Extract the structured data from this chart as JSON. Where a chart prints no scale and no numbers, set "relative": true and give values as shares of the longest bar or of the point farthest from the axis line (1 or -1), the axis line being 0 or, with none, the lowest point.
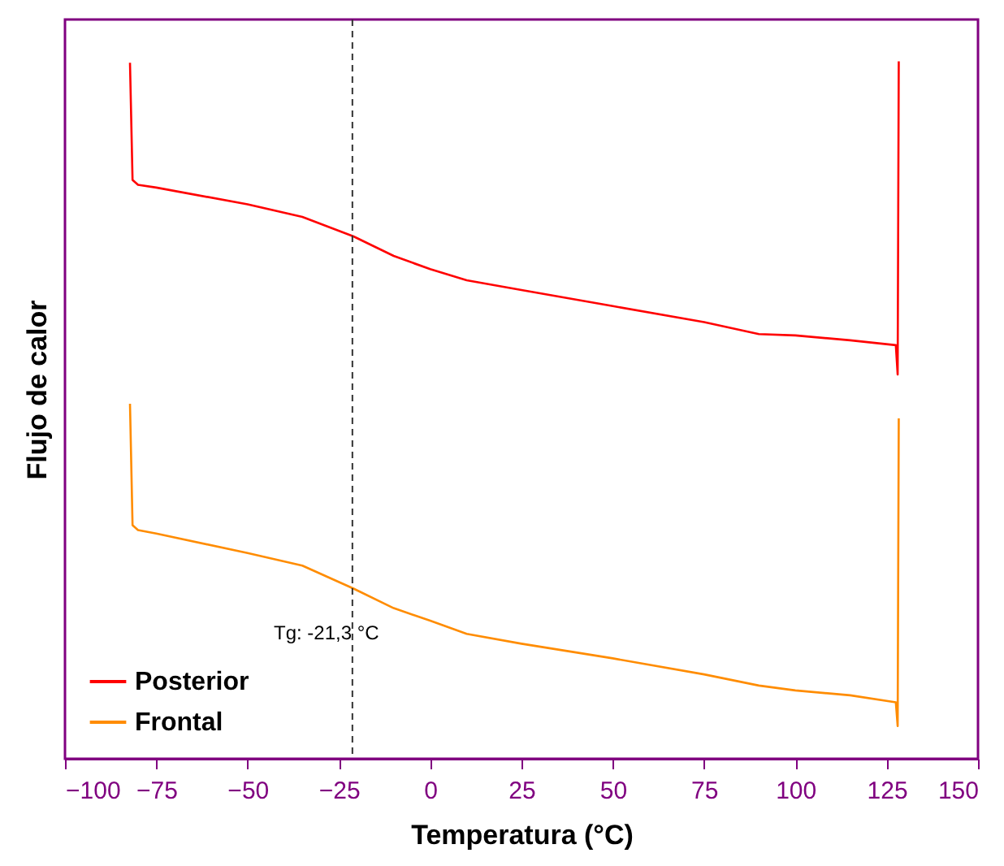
{
  "chart_data": {
    "type": "line",
    "xlabel": "Temperatura (°C)",
    "ylabel": "Flujo de calor",
    "relative": true,
    "tick_labels": "x",
    "xlim": [
      -100,
      150
    ],
    "xticks": [
      -100,
      -75,
      -50,
      -25,
      0,
      25,
      50,
      75,
      100,
      125,
      150
    ],
    "legend": "bottom left",
    "grid": false,
    "line_style": "solid",
    "series": [
      {
        "name": "Posterior",
        "color": "#ff0000",
        "x": [
          -82.2,
          -81.5,
          -80,
          -75,
          -50,
          -35,
          -21,
          -10,
          0,
          10,
          25,
          50,
          75,
          90,
          100,
          115,
          127.5,
          128,
          128.3
        ],
        "values": [
          0.998,
          0.83,
          0.823,
          0.819,
          0.795,
          0.777,
          0.749,
          0.721,
          0.702,
          0.686,
          0.672,
          0.649,
          0.626,
          0.609,
          0.607,
          0.6,
          0.593,
          0.551,
          1.0
        ]
      },
      {
        "name": "Frontal",
        "color": "#ff8c00",
        "x": [
          -82.2,
          -81.5,
          -80,
          -75,
          -50,
          -35,
          -21,
          -10,
          0,
          10,
          25,
          50,
          75,
          90,
          100,
          115,
          127.5,
          128,
          128.3
        ],
        "values": [
          0.509,
          0.335,
          0.328,
          0.323,
          0.295,
          0.277,
          0.244,
          0.216,
          0.198,
          0.179,
          0.165,
          0.144,
          0.121,
          0.105,
          0.098,
          0.091,
          0.081,
          0.047,
          0.488
        ]
      }
    ],
    "ref_lines": [
      {
        "axis": "x",
        "value": -21.3,
        "label": "Tg: -21,3 °C",
        "line_style": "dashed",
        "color": "#333333"
      }
    ]
  }
}
